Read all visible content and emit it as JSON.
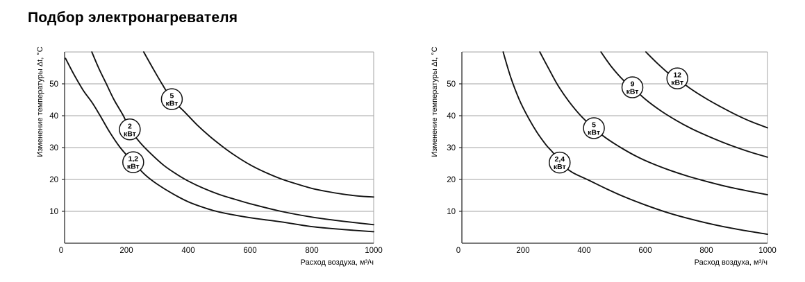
{
  "title": "Подбор электронагревателя",
  "chart_data": [
    {
      "type": "line",
      "name": "left-heater-chart",
      "xlabel": "Расход воздуха, м³/ч",
      "ylabel": "Изменение температуры Δt, °C",
      "xlim": [
        0,
        1000
      ],
      "ylim": [
        0,
        60
      ],
      "x_ticks": [
        0,
        200,
        400,
        600,
        800,
        1000
      ],
      "y_ticks": [
        10,
        20,
        30,
        40,
        50
      ],
      "grid": "horizontal",
      "legend_position": "on-curve-badges",
      "series": [
        {
          "name": "1,2 кВт",
          "badge_value": "1,2",
          "badge_unit": "кВт",
          "badge_at": {
            "q": 222,
            "dt": 25.4
          },
          "points": [
            [
              3,
              58
            ],
            [
              30,
              53
            ],
            [
              60,
              48
            ],
            [
              90,
              44
            ],
            [
              115,
              40
            ],
            [
              145,
              35
            ],
            [
              180,
              30
            ],
            [
              222,
              25.4
            ],
            [
              260,
              21.5
            ],
            [
              300,
              18.5
            ],
            [
              350,
              15.5
            ],
            [
              400,
              13
            ],
            [
              450,
              11.2
            ],
            [
              500,
              9.8
            ],
            [
              600,
              8
            ],
            [
              700,
              6.7
            ],
            [
              800,
              5.2
            ],
            [
              900,
              4.3
            ],
            [
              1000,
              3.6
            ]
          ]
        },
        {
          "name": "2 кВт",
          "badge_value": "2",
          "badge_unit": "кВт",
          "badge_at": {
            "q": 211,
            "dt": 35.7
          },
          "points": [
            [
              88,
              60
            ],
            [
              110,
              55
            ],
            [
              135,
              50
            ],
            [
              160,
              45
            ],
            [
              190,
              40
            ],
            [
              211,
              35.7
            ],
            [
              245,
              31.5
            ],
            [
              280,
              28
            ],
            [
              320,
              24.5
            ],
            [
              360,
              21.8
            ],
            [
              400,
              19.5
            ],
            [
              450,
              17.2
            ],
            [
              500,
              15.3
            ],
            [
              550,
              13.8
            ],
            [
              600,
              12.4
            ],
            [
              700,
              10
            ],
            [
              800,
              8.2
            ],
            [
              900,
              6.9
            ],
            [
              1000,
              5.8
            ]
          ]
        },
        {
          "name": "5 кВт",
          "badge_value": "5",
          "badge_unit": "кВт",
          "badge_at": {
            "q": 347,
            "dt": 45.2
          },
          "points": [
            [
              256,
              60
            ],
            [
              285,
              55
            ],
            [
              315,
              50
            ],
            [
              347,
              45.2
            ],
            [
              390,
              41
            ],
            [
              430,
              37
            ],
            [
              470,
              33.5
            ],
            [
              510,
              30.4
            ],
            [
              550,
              27.6
            ],
            [
              600,
              24.6
            ],
            [
              650,
              22.2
            ],
            [
              700,
              20.2
            ],
            [
              750,
              18.6
            ],
            [
              800,
              17.2
            ],
            [
              850,
              16.2
            ],
            [
              900,
              15.4
            ],
            [
              950,
              14.8
            ],
            [
              1000,
              14.5
            ]
          ]
        }
      ]
    },
    {
      "type": "line",
      "name": "right-heater-chart",
      "xlabel": "Расход воздуха, м³/ч",
      "ylabel": "Изменение температуры Δt, °C",
      "xlim": [
        0,
        1000
      ],
      "ylim": [
        0,
        60
      ],
      "x_ticks": [
        0,
        200,
        400,
        600,
        800,
        1000
      ],
      "y_ticks": [
        10,
        20,
        30,
        40,
        50
      ],
      "grid": "horizontal",
      "legend_position": "on-curve-badges",
      "series": [
        {
          "name": "2,4 кВт",
          "badge_value": "2,4",
          "badge_unit": "кВт",
          "badge_at": {
            "q": 320,
            "dt": 25.3
          },
          "points": [
            [
              135,
              60
            ],
            [
              160,
              52
            ],
            [
              188,
              45
            ],
            [
              215,
              39.8
            ],
            [
              245,
              34.9
            ],
            [
              275,
              30.9
            ],
            [
              300,
              28.2
            ],
            [
              320,
              25.3
            ],
            [
              360,
              22.3
            ],
            [
              410,
              20
            ],
            [
              470,
              17.2
            ],
            [
              530,
              14.6
            ],
            [
              600,
              12
            ],
            [
              680,
              9.4
            ],
            [
              760,
              7.3
            ],
            [
              850,
              5.3
            ],
            [
              930,
              3.9
            ],
            [
              1000,
              2.8
            ]
          ]
        },
        {
          "name": "5 кВт",
          "badge_value": "5",
          "badge_unit": "кВт",
          "badge_at": {
            "q": 432,
            "dt": 36.1
          },
          "points": [
            [
              255,
              60
            ],
            [
              285,
              54.6
            ],
            [
              315,
              49.4
            ],
            [
              350,
              44.5
            ],
            [
              390,
              39.9
            ],
            [
              432,
              36.1
            ],
            [
              470,
              33.1
            ],
            [
              520,
              30
            ],
            [
              570,
              27.3
            ],
            [
              620,
              25.1
            ],
            [
              680,
              22.9
            ],
            [
              740,
              21
            ],
            [
              800,
              19.4
            ],
            [
              870,
              17.7
            ],
            [
              940,
              16.3
            ],
            [
              1000,
              15.2
            ]
          ]
        },
        {
          "name": "9 кВт",
          "badge_value": "9",
          "badge_unit": "кВт",
          "badge_at": {
            "q": 558,
            "dt": 48.9
          },
          "points": [
            [
              455,
              60
            ],
            [
              490,
              55.3
            ],
            [
              530,
              51
            ],
            [
              558,
              48.9
            ],
            [
              600,
              45.2
            ],
            [
              650,
              41.6
            ],
            [
              700,
              38.6
            ],
            [
              750,
              36
            ],
            [
              800,
              33.8
            ],
            [
              850,
              31.8
            ],
            [
              900,
              30
            ],
            [
              950,
              28.4
            ],
            [
              1000,
              27
            ]
          ]
        },
        {
          "name": "12 кВт",
          "badge_value": "12",
          "badge_unit": "кВт",
          "badge_at": {
            "q": 705,
            "dt": 51.7
          },
          "points": [
            [
              602,
              60
            ],
            [
              640,
              56.4
            ],
            [
              680,
              53
            ],
            [
              705,
              51.7
            ],
            [
              745,
              48.7
            ],
            [
              795,
              45.6
            ],
            [
              845,
              42.9
            ],
            [
              895,
              40.4
            ],
            [
              945,
              38.2
            ],
            [
              1000,
              36.2
            ]
          ]
        }
      ]
    }
  ],
  "style": {
    "curve_color": "#111111",
    "grid_color": "#a3a3a3",
    "axis_color": "#2b2b2b",
    "badge_fill": "#ffffff",
    "text_color": "#000000"
  }
}
